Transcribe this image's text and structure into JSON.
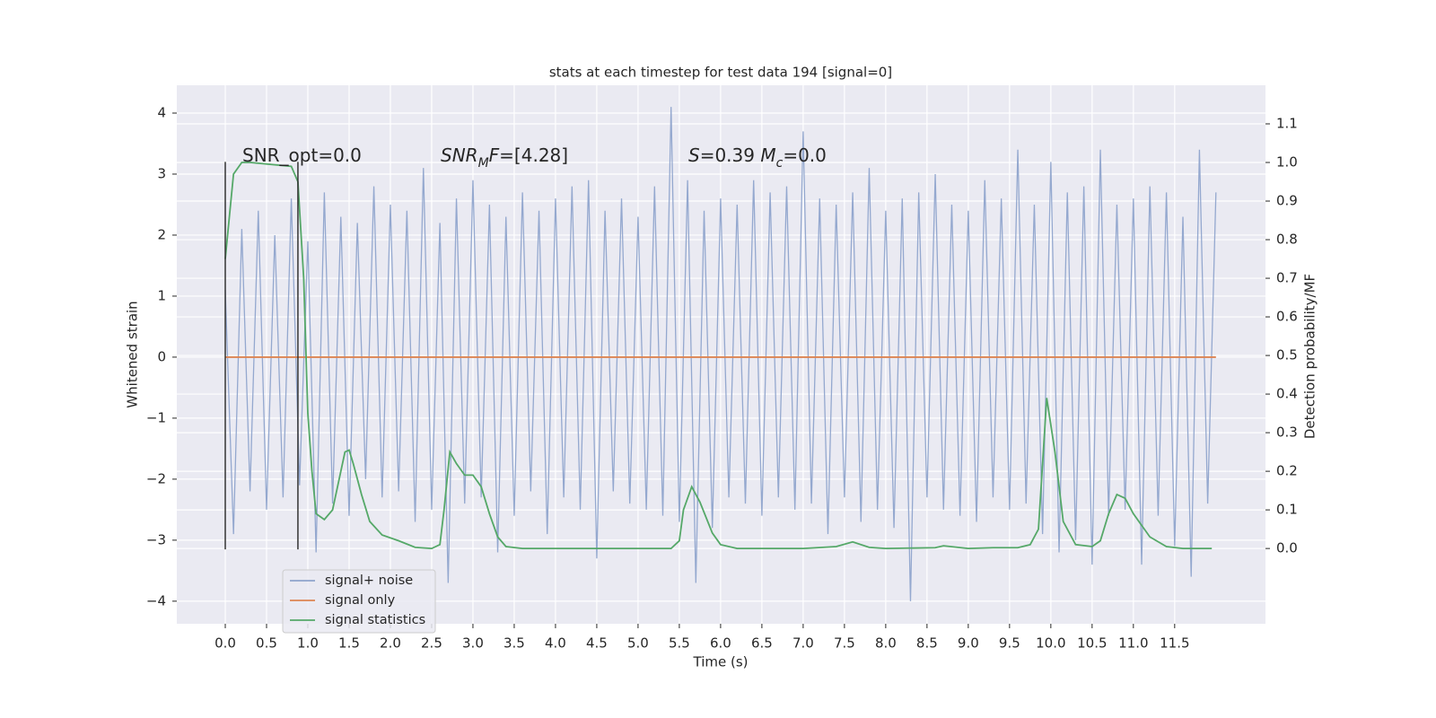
{
  "chart_data": {
    "type": "line",
    "title": "stats at each timestep for test data 194 [signal=0]",
    "xlabel": "Time (s)",
    "ylabel": "Whitened strain",
    "y2label": "Detection probability/MF",
    "xlim": [
      -0.587,
      12.6
    ],
    "ylim": [
      -4.37,
      4.456
    ],
    "y2lim": [
      -0.195,
      1.2
    ],
    "xticks": [
      {
        "value": 0,
        "label": "0.0"
      },
      0.5,
      {
        "value": 1,
        "label": "1.0"
      },
      1.5,
      {
        "value": 2,
        "label": "2.0"
      },
      2.5,
      {
        "value": 3,
        "label": "3.0"
      },
      3.5,
      {
        "value": 4,
        "label": "4.0"
      },
      4.5,
      {
        "value": 5,
        "label": "5.0"
      },
      5.5,
      {
        "value": 6,
        "label": "6.0"
      },
      6.5,
      {
        "value": 7,
        "label": "7.0"
      },
      7.5,
      {
        "value": 8,
        "label": "8.0"
      },
      8.5,
      {
        "value": 9,
        "label": "9.0"
      },
      9.5,
      {
        "value": 10,
        "label": "10.0"
      },
      10.5,
      {
        "value": 11,
        "label": "11.0"
      },
      11.5
    ],
    "yticks": [
      {
        "value": -4,
        "label": "−4"
      },
      {
        "value": -3,
        "label": "−3"
      },
      {
        "value": -2,
        "label": "−2"
      },
      {
        "value": -1,
        "label": "−1"
      },
      0,
      1,
      2,
      3,
      4
    ],
    "y2ticks": [
      {
        "value": 0,
        "label": "0.0"
      },
      0.1,
      0.2,
      0.3,
      0.4,
      0.5,
      0.6,
      0.7,
      0.8,
      0.9,
      {
        "value": 1,
        "label": "1.0"
      },
      1.1
    ],
    "grid": true,
    "legend": "lower left",
    "series": [
      {
        "name": "signal+ noise",
        "color": "#8fa4cc",
        "x": [
          0,
          0.1,
          0.2,
          0.3,
          0.4,
          0.5,
          0.6,
          0.7,
          0.8,
          0.9,
          1,
          1.1,
          1.2,
          1.3,
          1.4,
          1.5,
          1.6,
          1.7,
          1.8,
          1.9,
          2,
          2.1,
          2.2,
          2.3,
          2.4,
          2.5,
          2.6,
          2.7,
          2.8,
          2.9,
          3,
          3.1,
          3.2,
          3.3,
          3.4,
          3.5,
          3.6,
          3.7,
          3.8,
          3.9,
          4,
          4.1,
          4.2,
          4.3,
          4.4,
          4.5,
          4.6,
          4.7,
          4.8,
          4.9,
          5,
          5.1,
          5.2,
          5.3,
          5.4,
          5.5,
          5.6,
          5.7,
          5.8,
          5.9,
          6,
          6.1,
          6.2,
          6.3,
          6.4,
          6.5,
          6.6,
          6.7,
          6.8,
          6.9,
          7,
          7.1,
          7.2,
          7.3,
          7.4,
          7.5,
          7.6,
          7.7,
          7.8,
          7.9,
          8,
          8.1,
          8.2,
          8.3,
          8.4,
          8.5,
          8.6,
          8.7,
          8.8,
          8.9,
          9,
          9.1,
          9.2,
          9.3,
          9.4,
          9.5,
          9.6,
          9.7,
          9.8,
          9.9,
          10,
          10.1,
          10.2,
          10.3,
          10.4,
          10.5,
          10.6,
          10.7,
          10.8,
          10.9,
          11,
          11.1,
          11.2,
          11.3,
          11.4,
          11.5,
          11.6,
          11.7,
          11.8,
          11.9,
          12
        ],
        "values": [
          1.1,
          -2.9,
          2.1,
          -2.2,
          2.4,
          -2.5,
          2.0,
          -2.3,
          2.6,
          -2.1,
          1.9,
          -3.2,
          2.7,
          -2.4,
          2.3,
          -2.6,
          2.2,
          -2.0,
          2.8,
          -2.3,
          2.5,
          -2.2,
          2.4,
          -2.7,
          3.1,
          -2.5,
          2.2,
          -3.7,
          2.6,
          -2.4,
          2.9,
          -2.3,
          2.5,
          -3.2,
          2.3,
          -2.6,
          2.7,
          -2.2,
          2.4,
          -2.9,
          2.6,
          -2.3,
          2.8,
          -2.5,
          2.9,
          -3.3,
          2.4,
          -2.2,
          2.6,
          -2.4,
          2.3,
          -2.5,
          2.8,
          -2.6,
          4.1,
          -2.7,
          2.9,
          -3.7,
          2.4,
          -2.8,
          2.6,
          -2.3,
          2.5,
          -2.4,
          2.9,
          -2.6,
          2.7,
          -2.3,
          2.8,
          -2.5,
          3.7,
          -2.4,
          2.6,
          -2.9,
          2.5,
          -2.3,
          2.7,
          -2.7,
          3.1,
          -2.5,
          2.4,
          -2.8,
          2.6,
          -4.0,
          2.7,
          -2.3,
          3.0,
          -2.5,
          2.5,
          -2.6,
          2.4,
          -2.7,
          2.9,
          -2.3,
          2.6,
          -2.5,
          3.4,
          -2.4,
          2.5,
          -2.9,
          3.2,
          -3.2,
          2.7,
          -3.0,
          2.8,
          -3.4,
          3.4,
          -2.6,
          2.5,
          -2.5,
          2.6,
          -3.4,
          2.8,
          -2.6,
          2.7,
          -3.1,
          2.3,
          -3.6,
          3.4,
          -2.4,
          2.7
        ]
      },
      {
        "name": "signal only",
        "color": "#dd8452",
        "x": [
          0,
          12
        ],
        "values": [
          0,
          0
        ]
      },
      {
        "name": "signal statistics",
        "color": "#55a868",
        "axis": "y2",
        "x": [
          0,
          0.1,
          0.2,
          0.3,
          0.8,
          0.88,
          0.95,
          1.0,
          1.05,
          1.1,
          1.2,
          1.3,
          1.4,
          1.45,
          1.5,
          1.55,
          1.65,
          1.75,
          1.9,
          2.1,
          2.3,
          2.5,
          2.6,
          2.65,
          2.72,
          2.8,
          2.9,
          3.0,
          3.1,
          3.2,
          3.3,
          3.4,
          3.6,
          5.4,
          5.5,
          5.55,
          5.65,
          5.75,
          5.9,
          6.0,
          6.2,
          7.0,
          7.4,
          7.6,
          7.8,
          8.0,
          8.6,
          8.7,
          9.0,
          9.3,
          9.6,
          9.75,
          9.85,
          9.95,
          10.05,
          10.15,
          10.3,
          10.5,
          10.6,
          10.7,
          10.8,
          10.9,
          11.0,
          11.2,
          11.4,
          11.6,
          11.95
        ],
        "values": [
          0.75,
          0.97,
          1.0,
          1.0,
          0.99,
          0.95,
          0.7,
          0.35,
          0.2,
          0.09,
          0.075,
          0.1,
          0.2,
          0.25,
          0.255,
          0.22,
          0.14,
          0.07,
          0.035,
          0.02,
          0.003,
          0.0,
          0.01,
          0.1,
          0.25,
          0.22,
          0.19,
          0.19,
          0.16,
          0.09,
          0.03,
          0.005,
          0.0,
          0.0,
          0.02,
          0.1,
          0.16,
          0.12,
          0.04,
          0.01,
          0.0,
          0.0,
          0.005,
          0.017,
          0.003,
          0.0,
          0.002,
          0.007,
          0.0,
          0.002,
          0.002,
          0.01,
          0.05,
          0.39,
          0.25,
          0.07,
          0.01,
          0.005,
          0.02,
          0.09,
          0.14,
          0.13,
          0.09,
          0.03,
          0.005,
          0.0,
          0.0
        ]
      }
    ],
    "vlines": {
      "x": [
        0,
        0.88
      ],
      "ymin": -3.15,
      "ymax": 3.2,
      "color": "#333333"
    },
    "annotations": [
      {
        "parts": [
          {
            "text": "SNR_opt=0.0"
          }
        ]
      },
      {
        "parts": [
          {
            "text": "SNR",
            "italic": true
          },
          {
            "text": "M",
            "italic": true,
            "sub": true
          },
          {
            "text": "F",
            "italic": true
          },
          {
            "text": "=[4.28]"
          }
        ]
      },
      {
        "parts": [
          {
            "text": "S",
            "italic": true
          },
          {
            "text": "=0.39   "
          },
          {
            "text": "M",
            "italic": true
          },
          {
            "text": "c",
            "italic": true,
            "sub": true
          },
          {
            "text": "=0.0"
          }
        ]
      }
    ]
  }
}
